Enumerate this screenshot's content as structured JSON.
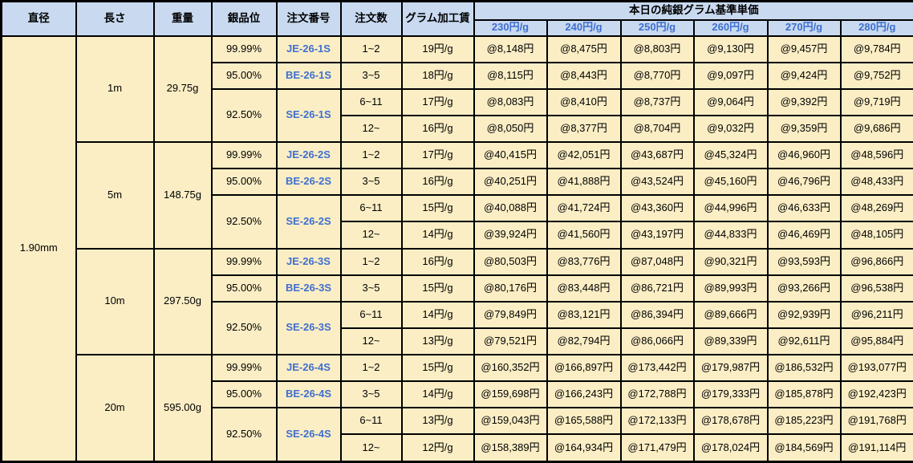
{
  "columns": {
    "diameter": "直径",
    "length": "長さ",
    "weight": "重量",
    "purity": "銀品位",
    "order_no": "注文番号",
    "order_qty": "注文数",
    "fee": "グラム加工賃",
    "price_group_title": "本日の純銀グラム基準単価",
    "price_rates": [
      "230円/g",
      "240円/g",
      "250円/g",
      "260円/g",
      "270円/g",
      "280円/g"
    ]
  },
  "diameter_value": "1.90mm",
  "groups": [
    {
      "length": "1m",
      "weight": "29.75g",
      "purities": [
        {
          "purity": "99.99%",
          "order_no": "JE-26-1S"
        },
        {
          "purity": "95.00%",
          "order_no": "BE-26-1S"
        },
        {
          "purity": "92.50%",
          "order_no": "SE-26-1S"
        }
      ],
      "rows": [
        {
          "qty": "1~2",
          "fee": "19円/g",
          "prices": [
            "@8,148円",
            "@8,475円",
            "@8,803円",
            "@9,130円",
            "@9,457円",
            "@9,784円"
          ]
        },
        {
          "qty": "3~5",
          "fee": "18円/g",
          "prices": [
            "@8,115円",
            "@8,443円",
            "@8,770円",
            "@9,097円",
            "@9,424円",
            "@9,752円"
          ]
        },
        {
          "qty": "6~11",
          "fee": "17円/g",
          "prices": [
            "@8,083円",
            "@8,410円",
            "@8,737円",
            "@9,064円",
            "@9,392円",
            "@9,719円"
          ]
        },
        {
          "qty": "12~",
          "fee": "16円/g",
          "prices": [
            "@8,050円",
            "@8,377円",
            "@8,704円",
            "@9,032円",
            "@9,359円",
            "@9,686円"
          ]
        }
      ]
    },
    {
      "length": "5m",
      "weight": "148.75g",
      "purities": [
        {
          "purity": "99.99%",
          "order_no": "JE-26-2S"
        },
        {
          "purity": "95.00%",
          "order_no": "BE-26-2S"
        },
        {
          "purity": "92.50%",
          "order_no": "SE-26-2S"
        }
      ],
      "rows": [
        {
          "qty": "1~2",
          "fee": "17円/g",
          "prices": [
            "@40,415円",
            "@42,051円",
            "@43,687円",
            "@45,324円",
            "@46,960円",
            "@48,596円"
          ]
        },
        {
          "qty": "3~5",
          "fee": "16円/g",
          "prices": [
            "@40,251円",
            "@41,888円",
            "@43,524円",
            "@45,160円",
            "@46,796円",
            "@48,433円"
          ]
        },
        {
          "qty": "6~11",
          "fee": "15円/g",
          "prices": [
            "@40,088円",
            "@41,724円",
            "@43,360円",
            "@44,996円",
            "@46,633円",
            "@48,269円"
          ]
        },
        {
          "qty": "12~",
          "fee": "14円/g",
          "prices": [
            "@39,924円",
            "@41,560円",
            "@43,197円",
            "@44,833円",
            "@46,469円",
            "@48,105円"
          ]
        }
      ]
    },
    {
      "length": "10m",
      "weight": "297.50g",
      "purities": [
        {
          "purity": "99.99%",
          "order_no": "JE-26-3S"
        },
        {
          "purity": "95.00%",
          "order_no": "BE-26-3S"
        },
        {
          "purity": "92.50%",
          "order_no": "SE-26-3S"
        }
      ],
      "rows": [
        {
          "qty": "1~2",
          "fee": "16円/g",
          "prices": [
            "@80,503円",
            "@83,776円",
            "@87,048円",
            "@90,321円",
            "@93,593円",
            "@96,866円"
          ]
        },
        {
          "qty": "3~5",
          "fee": "15円/g",
          "prices": [
            "@80,176円",
            "@83,448円",
            "@86,721円",
            "@89,993円",
            "@93,266円",
            "@96,538円"
          ]
        },
        {
          "qty": "6~11",
          "fee": "14円/g",
          "prices": [
            "@79,849円",
            "@83,121円",
            "@86,394円",
            "@89,666円",
            "@92,939円",
            "@96,211円"
          ]
        },
        {
          "qty": "12~",
          "fee": "13円/g",
          "prices": [
            "@79,521円",
            "@82,794円",
            "@86,066円",
            "@89,339円",
            "@92,611円",
            "@95,884円"
          ]
        }
      ]
    },
    {
      "length": "20m",
      "weight": "595.00g",
      "purities": [
        {
          "purity": "99.99%",
          "order_no": "JE-26-4S"
        },
        {
          "purity": "95.00%",
          "order_no": "BE-26-4S"
        },
        {
          "purity": "92.50%",
          "order_no": "SE-26-4S"
        }
      ],
      "rows": [
        {
          "qty": "1~2",
          "fee": "15円/g",
          "prices": [
            "@160,352円",
            "@166,897円",
            "@173,442円",
            "@179,987円",
            "@186,532円",
            "@193,077円"
          ]
        },
        {
          "qty": "3~5",
          "fee": "14円/g",
          "prices": [
            "@159,698円",
            "@166,243円",
            "@172,788円",
            "@179,333円",
            "@185,878円",
            "@192,423円"
          ]
        },
        {
          "qty": "6~11",
          "fee": "13円/g",
          "prices": [
            "@159,043円",
            "@165,588円",
            "@172,133円",
            "@178,678円",
            "@185,223円",
            "@191,768円"
          ]
        },
        {
          "qty": "12~",
          "fee": "12円/g",
          "prices": [
            "@158,389円",
            "@164,934円",
            "@171,479円",
            "@178,024円",
            "@184,569円",
            "@191,114円"
          ]
        }
      ]
    }
  ],
  "colors": {
    "header_bg": "#c9daf0",
    "cell_bg": "#fbeec5",
    "accent_blue": "#3e6fd0",
    "border_color": "#000000"
  }
}
